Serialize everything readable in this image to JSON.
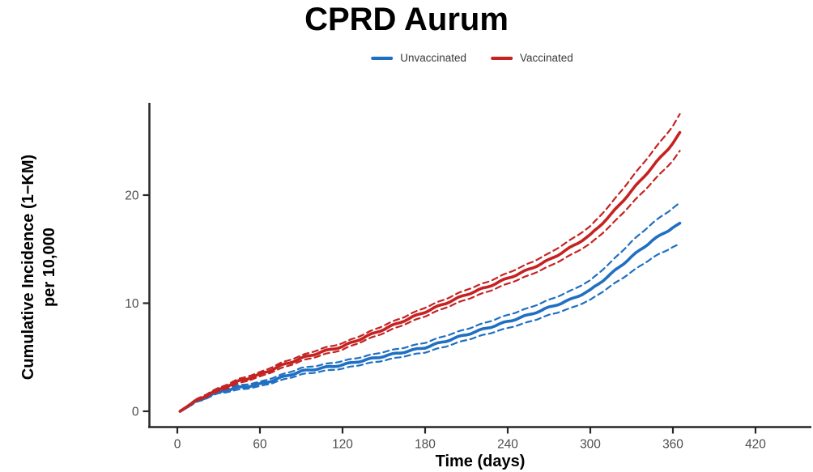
{
  "title": "CPRD Aurum",
  "legend": {
    "items": [
      {
        "label": "Unvaccinated",
        "color": "#1F6FC2"
      },
      {
        "label": "Vaccinated",
        "color": "#C52222"
      }
    ]
  },
  "axes": {
    "x_title": "Time (days)",
    "y_title_line1": "Cumulative Incidence (1−KM)",
    "y_title_line2": "per 10,000"
  },
  "colors": {
    "axis_line": "#262626",
    "tick_label": "#4d4d4d",
    "unvaccinated": "#1F6FC2",
    "vaccinated": "#C52222"
  },
  "chart_data": {
    "type": "line",
    "title": "CPRD Aurum",
    "xlabel": "Time (days)",
    "ylabel": "Cumulative Incidence (1−KM) per 10,000",
    "x_ticks": [
      0,
      60,
      120,
      180,
      240,
      300,
      360,
      420
    ],
    "y_ticks": [
      0,
      10,
      20
    ],
    "xlim": [
      0,
      460
    ],
    "ylim": [
      0,
      28.5
    ],
    "grid": false,
    "legend_position": "top",
    "ci_style": "dashed",
    "x": [
      2,
      15,
      30,
      45,
      60,
      75,
      90,
      105,
      120,
      135,
      150,
      165,
      180,
      195,
      210,
      225,
      240,
      255,
      270,
      285,
      300,
      315,
      330,
      345,
      360,
      365
    ],
    "series": [
      {
        "name": "Unvaccinated",
        "color": "#1F6FC2",
        "values": [
          0,
          1.0,
          1.8,
          2.2,
          2.5,
          3.1,
          3.7,
          4.0,
          4.3,
          4.7,
          5.1,
          5.5,
          5.9,
          6.5,
          7.1,
          7.7,
          8.3,
          8.9,
          9.6,
          10.3,
          11.2,
          12.7,
          14.3,
          15.8,
          17.0,
          17.4
        ],
        "ci_upper": [
          0.05,
          1.1,
          1.95,
          2.4,
          2.7,
          3.35,
          4.0,
          4.3,
          4.65,
          5.05,
          5.5,
          5.9,
          6.35,
          7.0,
          7.6,
          8.25,
          8.9,
          9.55,
          10.3,
          11.1,
          12.1,
          13.8,
          15.7,
          17.4,
          18.8,
          19.3
        ],
        "ci_lower": [
          0,
          0.9,
          1.65,
          2.0,
          2.3,
          2.85,
          3.4,
          3.7,
          3.95,
          4.35,
          4.7,
          5.1,
          5.45,
          6.0,
          6.6,
          7.15,
          7.7,
          8.25,
          8.9,
          9.5,
          10.3,
          11.6,
          12.9,
          14.2,
          15.2,
          15.5
        ]
      },
      {
        "name": "Vaccinated",
        "color": "#C52222",
        "values": [
          0,
          1.1,
          2.0,
          2.8,
          3.4,
          4.2,
          4.9,
          5.5,
          6.0,
          6.8,
          7.6,
          8.4,
          9.2,
          10.0,
          10.8,
          11.5,
          12.3,
          13.1,
          14.0,
          15.1,
          16.3,
          18.2,
          20.4,
          22.6,
          24.8,
          25.8
        ],
        "ci_upper": [
          0.05,
          1.2,
          2.15,
          3.0,
          3.6,
          4.45,
          5.15,
          5.8,
          6.3,
          7.1,
          7.95,
          8.75,
          9.6,
          10.4,
          11.25,
          11.95,
          12.8,
          13.65,
          14.6,
          15.8,
          17.1,
          19.2,
          21.6,
          24.0,
          26.4,
          27.5
        ],
        "ci_lower": [
          0,
          1.0,
          1.85,
          2.6,
          3.2,
          3.95,
          4.65,
          5.2,
          5.7,
          6.5,
          7.25,
          8.05,
          8.8,
          9.6,
          10.35,
          11.05,
          11.8,
          12.55,
          13.4,
          14.4,
          15.5,
          17.2,
          19.2,
          21.2,
          23.2,
          24.1
        ]
      }
    ]
  }
}
